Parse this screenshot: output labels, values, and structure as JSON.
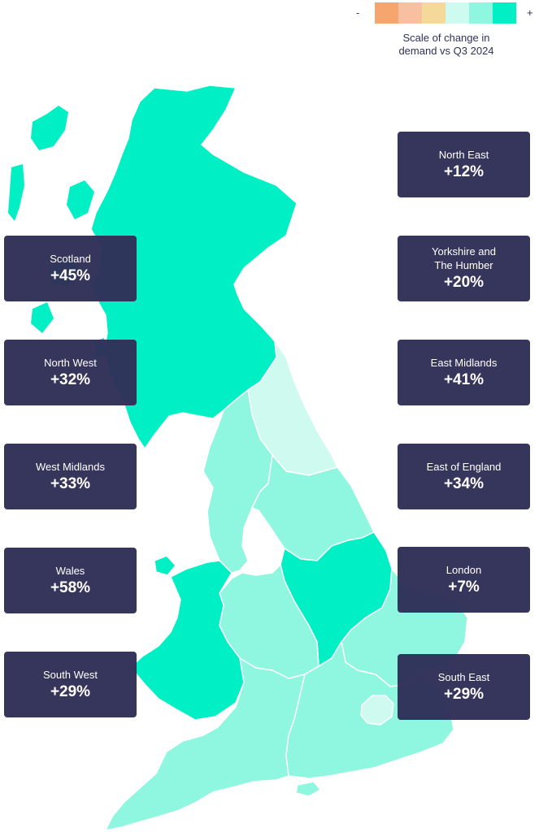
{
  "legend": {
    "minus": "-",
    "plus": "+",
    "caption_line1": "Scale of change in",
    "caption_line2": "demand vs Q3 2024",
    "scale_colors": [
      "#f7a56f",
      "#f8c0a0",
      "#f5d99b",
      "#cffaf0",
      "#8ff6e0",
      "#00efc4"
    ]
  },
  "colors": {
    "card_bg": "#2f3058",
    "card_text": "#ffffff",
    "border": "#ffffff"
  },
  "regions": [
    {
      "id": "north-east",
      "name": "North East",
      "value": "+12%",
      "change": 12,
      "fill": "#cffaf0"
    },
    {
      "id": "scotland",
      "name": "Scotland",
      "value": "+45%",
      "change": 45,
      "fill": "#00efc4"
    },
    {
      "id": "yorkshire",
      "name": "Yorkshire and The Humber",
      "value": "+20%",
      "change": 20,
      "fill": "#8ff6e0"
    },
    {
      "id": "north-west",
      "name": "North West",
      "value": "+32%",
      "change": 32,
      "fill": "#8ff6e0"
    },
    {
      "id": "east-midlands",
      "name": "East Midlands",
      "value": "+41%",
      "change": 41,
      "fill": "#00efc4"
    },
    {
      "id": "west-midlands",
      "name": "West Midlands",
      "value": "+33%",
      "change": 33,
      "fill": "#8ff6e0"
    },
    {
      "id": "east-of-england",
      "name": "East of England",
      "value": "+34%",
      "change": 34,
      "fill": "#8ff6e0"
    },
    {
      "id": "wales",
      "name": "Wales",
      "value": "+58%",
      "change": 58,
      "fill": "#00efc4"
    },
    {
      "id": "london",
      "name": "London",
      "value": "+7%",
      "change": 7,
      "fill": "#cffaf0"
    },
    {
      "id": "south-west",
      "name": "South West",
      "value": "+29%",
      "change": 29,
      "fill": "#8ff6e0"
    },
    {
      "id": "south-east",
      "name": "South East",
      "value": "+29%",
      "change": 29,
      "fill": "#8ff6e0"
    }
  ],
  "cards": {
    "north-east": {
      "name_line1": "North East",
      "name_line2": "",
      "value": "+12%"
    },
    "scotland": {
      "name_line1": "Scotland",
      "name_line2": "",
      "value": "+45%"
    },
    "yorkshire": {
      "name_line1": "Yorkshire and",
      "name_line2": "The Humber",
      "value": "+20%"
    },
    "north-west": {
      "name_line1": "North West",
      "name_line2": "",
      "value": "+32%"
    },
    "east-midlands": {
      "name_line1": "East Midlands",
      "name_line2": "",
      "value": "+41%"
    },
    "west-midlands": {
      "name_line1": "West Midlands",
      "name_line2": "",
      "value": "+33%"
    },
    "east-of-england": {
      "name_line1": "East of England",
      "name_line2": "",
      "value": "+34%"
    },
    "wales": {
      "name_line1": "Wales",
      "name_line2": "",
      "value": "+58%"
    },
    "london": {
      "name_line1": "London",
      "name_line2": "",
      "value": "+7%"
    },
    "south-west": {
      "name_line1": "South West",
      "name_line2": "",
      "value": "+29%"
    },
    "south-east": {
      "name_line1": "South East",
      "name_line2": "",
      "value": "+29%"
    }
  }
}
